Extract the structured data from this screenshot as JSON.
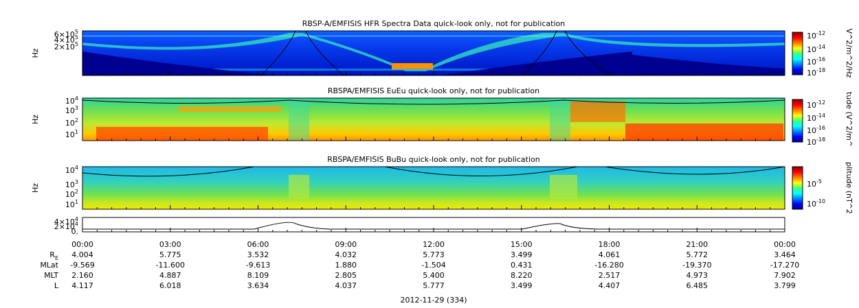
{
  "panels": [
    {
      "title": "RBSP-A/EMFISIS  HFR Spectra Data quick-look only, not for publication",
      "ylabel": "Hz",
      "yticks": [
        {
          "base": "6×10",
          "exp": "5"
        },
        {
          "base": "4×10",
          "exp": "5"
        },
        {
          "base": "2×10",
          "exp": "5"
        }
      ],
      "cbar_label": "V^2/m^2/Hz",
      "cbar_ticks": [
        {
          "base": "10",
          "exp": "-12"
        },
        {
          "base": "10",
          "exp": "-14"
        },
        {
          "base": "10",
          "exp": "-16"
        },
        {
          "base": "10",
          "exp": "-18"
        }
      ]
    },
    {
      "title": "RBSPA/EMFISIS  EuEu quick-look only, not for publication",
      "ylabel": "Hz",
      "yticks": [
        {
          "base": "10",
          "exp": "4"
        },
        {
          "base": "10",
          "exp": "3"
        },
        {
          "base": "10",
          "exp": "2"
        },
        {
          "base": "10",
          "exp": "1"
        }
      ],
      "cbar_label": "tude (V^2/m^",
      "cbar_ticks": [
        {
          "base": "10",
          "exp": "-12"
        },
        {
          "base": "10",
          "exp": "-14"
        },
        {
          "base": "10",
          "exp": "-16"
        },
        {
          "base": "10",
          "exp": "-18"
        }
      ]
    },
    {
      "title": "RBSPA/EMFISIS  BuBu quick-look only, not for publication",
      "ylabel": "Hz",
      "yticks": [
        {
          "base": "10",
          "exp": "4"
        },
        {
          "base": "10",
          "exp": "3"
        },
        {
          "base": "10",
          "exp": "2"
        },
        {
          "base": "10",
          "exp": "1"
        }
      ],
      "cbar_label": "plitude (nT^2",
      "cbar_ticks": [
        {
          "base": "10",
          "exp": "-5"
        },
        {
          "base": "10",
          "exp": "-10"
        }
      ]
    },
    {
      "yticks": [
        {
          "base": "4×10",
          "exp": "4"
        },
        {
          "base": "2×10",
          "exp": "4"
        },
        {
          "base": "0.",
          "exp": ""
        }
      ]
    }
  ],
  "ephemeris": {
    "times": [
      "00:00",
      "03:00",
      "06:00",
      "09:00",
      "12:00",
      "15:00",
      "18:00",
      "21:00",
      "00:00"
    ],
    "rows": [
      {
        "label": "R",
        "sub": "E",
        "values": [
          "4.004",
          "5.775",
          "3.532",
          "4.032",
          "5.773",
          "3.499",
          "4.061",
          "5.772",
          "3.464"
        ]
      },
      {
        "label": "MLat",
        "values": [
          "-9.569",
          "-11.600",
          "-9.613",
          "1.880",
          "-1.504",
          "0.431",
          "-16.280",
          "-19.370",
          "-17.270"
        ]
      },
      {
        "label": "MLT",
        "values": [
          "2.160",
          "4.887",
          "8.109",
          "2.805",
          "5.400",
          "8.220",
          "2.517",
          "4.973",
          "7.902"
        ]
      },
      {
        "label": "L",
        "values": [
          "4.117",
          "6.018",
          "3.634",
          "4.037",
          "5.777",
          "3.499",
          "4.407",
          "6.485",
          "3.799"
        ]
      }
    ],
    "date": "2012-11-29 (334)"
  }
}
